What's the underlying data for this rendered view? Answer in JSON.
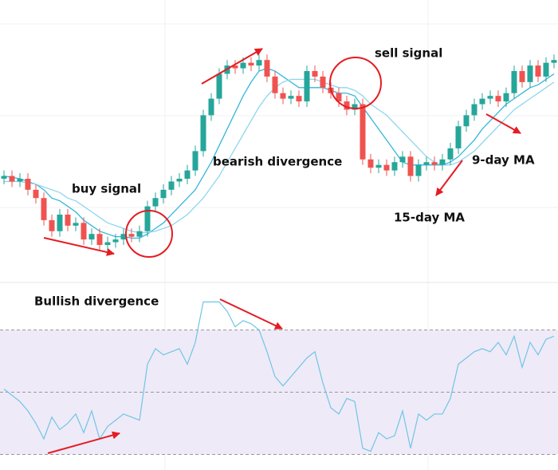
{
  "chart_data": [
    {
      "type": "candlestick",
      "up_color": "#26a69a",
      "down_color": "#ef5350",
      "ylim": [
        0,
        100
      ],
      "open": [
        37,
        38,
        36,
        37,
        33,
        30,
        22,
        18,
        24,
        20,
        21,
        15,
        17,
        13,
        14,
        15,
        17,
        16,
        18,
        27,
        30,
        33,
        36,
        37,
        40,
        47,
        60,
        66,
        75,
        78,
        77,
        79,
        78,
        80,
        74,
        68,
        66,
        67,
        65,
        76,
        74,
        70,
        68,
        65,
        62,
        64,
        44,
        41,
        42,
        40,
        43,
        45,
        38,
        42,
        43,
        42,
        44,
        48,
        56,
        60,
        64,
        66,
        67,
        65,
        68,
        76,
        72,
        78,
        74,
        79
      ],
      "high": [
        40,
        40,
        39,
        39,
        35,
        32,
        24,
        26,
        26,
        23,
        23,
        19,
        19,
        16,
        17,
        19,
        19,
        20,
        29,
        32,
        35,
        38,
        39,
        42,
        49,
        62,
        68,
        77,
        80,
        80,
        81,
        81,
        82,
        82,
        76,
        70,
        69,
        69,
        78,
        78,
        76,
        72,
        70,
        67,
        66,
        66,
        46,
        44,
        44,
        45,
        47,
        47,
        44,
        45,
        45,
        46,
        50,
        58,
        62,
        66,
        68,
        69,
        69,
        70,
        78,
        78,
        80,
        80,
        81,
        82
      ],
      "low": [
        35,
        34,
        34,
        31,
        28,
        20,
        16,
        16,
        18,
        18,
        13,
        13,
        11,
        11,
        12,
        13,
        14,
        14,
        16,
        25,
        28,
        31,
        34,
        35,
        38,
        45,
        58,
        64,
        73,
        75,
        75,
        76,
        76,
        72,
        66,
        64,
        64,
        63,
        63,
        72,
        68,
        66,
        63,
        60,
        60,
        42,
        39,
        39,
        38,
        38,
        41,
        36,
        36,
        40,
        40,
        40,
        42,
        46,
        54,
        58,
        62,
        64,
        63,
        63,
        66,
        70,
        70,
        72,
        72,
        77
      ],
      "close": [
        38,
        36,
        37,
        33,
        30,
        22,
        18,
        24,
        20,
        21,
        15,
        17,
        13,
        14,
        15,
        17,
        16,
        18,
        27,
        30,
        33,
        36,
        37,
        40,
        47,
        60,
        66,
        75,
        78,
        77,
        79,
        78,
        80,
        74,
        68,
        66,
        67,
        65,
        76,
        74,
        70,
        68,
        65,
        62,
        64,
        44,
        41,
        42,
        40,
        43,
        45,
        38,
        42,
        43,
        42,
        44,
        48,
        56,
        60,
        64,
        66,
        67,
        65,
        68,
        76,
        72,
        78,
        74,
        79,
        80
      ],
      "series": [
        {
          "name": "9-day MA",
          "color": "#35b6dc",
          "values": [
            38,
            37.5,
            37,
            36,
            35,
            33,
            30,
            29,
            27,
            25,
            22,
            20,
            18,
            17,
            16,
            16,
            15.5,
            15.5,
            17,
            19,
            21,
            24,
            27,
            30,
            33,
            38,
            43,
            49,
            55,
            61,
            67,
            72,
            76,
            77,
            76,
            74,
            72,
            70,
            70,
            70,
            70,
            69,
            68,
            68,
            67,
            63,
            59,
            55,
            51,
            47,
            43,
            42,
            42,
            42,
            42,
            42,
            43,
            45,
            48,
            51,
            55,
            58,
            61,
            64,
            66,
            68,
            70,
            71,
            73,
            75
          ]
        },
        {
          "name": "15-day MA",
          "color": "#8fd6ec",
          "values": [
            36,
            36,
            36,
            35.5,
            35,
            34,
            33,
            32,
            30,
            29,
            27,
            25,
            23,
            21,
            20,
            19,
            18,
            17.5,
            17.5,
            18,
            19,
            20,
            22,
            24,
            27,
            30,
            34,
            38,
            43,
            48,
            53,
            58,
            63,
            67,
            70,
            72,
            73,
            73,
            73,
            73,
            72,
            71,
            70,
            70,
            69,
            67,
            64,
            62,
            60,
            57,
            54,
            51,
            48,
            45,
            43,
            42,
            42,
            43,
            45,
            47,
            50,
            53,
            56,
            59,
            62,
            64,
            66,
            68,
            70,
            72
          ]
        }
      ],
      "annotations": [
        "buy signal",
        "sell signal",
        "bearish divergence"
      ]
    },
    {
      "type": "line",
      "ylim": [
        25,
        85
      ],
      "band": [
        30,
        70
      ],
      "band_color": "#efeaf8",
      "hlines": [
        30,
        50,
        70
      ],
      "color": "#6ec6e4",
      "values": [
        51,
        49,
        47,
        44,
        40,
        35,
        42,
        38,
        40,
        43,
        37,
        44,
        35,
        39,
        41,
        43,
        42,
        41,
        59,
        64,
        62,
        63,
        64,
        59,
        66,
        79,
        79,
        79,
        76,
        71,
        73,
        72,
        70,
        63,
        55,
        52,
        55,
        58,
        61,
        63,
        53,
        45,
        43,
        48,
        47,
        32,
        31,
        37,
        35,
        36,
        44,
        32,
        43,
        41,
        43,
        43,
        48,
        59,
        61,
        63,
        64,
        63,
        66,
        62,
        68,
        58,
        66,
        62,
        67,
        68
      ],
      "annotations": [
        "Bullish divergence"
      ]
    }
  ]
}
